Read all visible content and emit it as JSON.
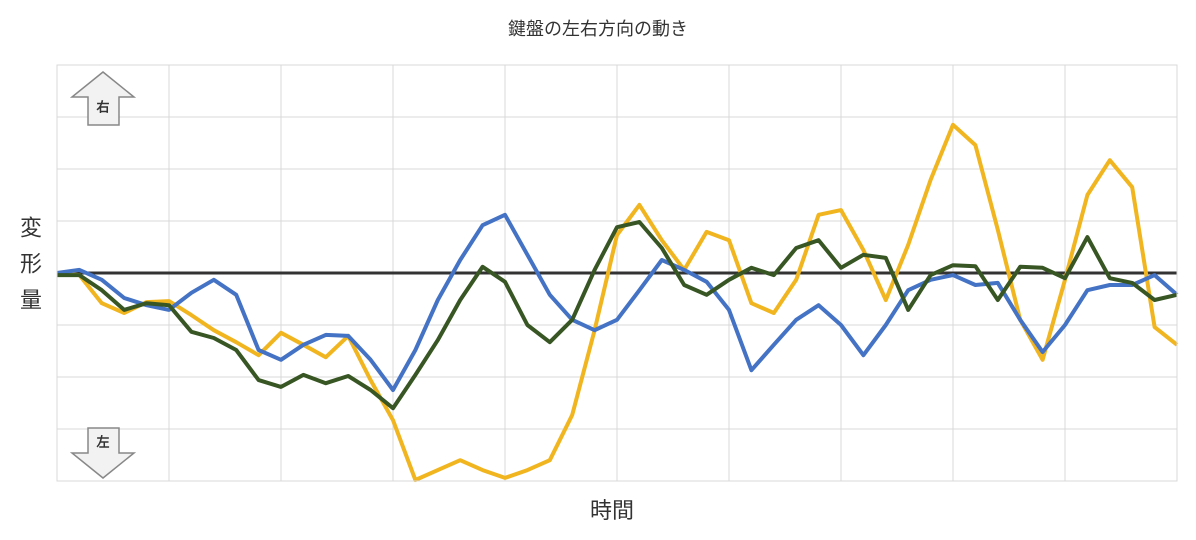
{
  "chart_data": {
    "type": "line",
    "title": "鍵盤の左右方向の動き",
    "x_label": "時間",
    "y_label": "変形量",
    "annotations": [
      "右",
      "左"
    ],
    "x": [
      0,
      1,
      2,
      3,
      4,
      5,
      6,
      7,
      8,
      9,
      10,
      11,
      12,
      13,
      14,
      15,
      16,
      17,
      18,
      19,
      20,
      21,
      22,
      23,
      24,
      25,
      26,
      27,
      28,
      29,
      30,
      31,
      32,
      33,
      34,
      35,
      36,
      37,
      38,
      39,
      40,
      41,
      42,
      43,
      44,
      45,
      46,
      47,
      48,
      49,
      50
    ],
    "xlim": [
      0,
      50
    ],
    "xticks": [
      0,
      5,
      10,
      15,
      20,
      25,
      30,
      35,
      40,
      45,
      50
    ],
    "ylim": [
      -4,
      4
    ],
    "yticks": [
      -4,
      -3,
      -2,
      -1,
      0,
      1,
      2,
      3,
      4
    ],
    "grid": true,
    "series": [
      {
        "color": "#f0b51f",
        "values": [
          0,
          -0.04,
          -0.58,
          -0.77,
          -0.56,
          -0.54,
          -0.81,
          -1.1,
          -1.33,
          -1.58,
          -1.15,
          -1.38,
          -1.62,
          -1.21,
          -2.06,
          -2.83,
          -3.98,
          -3.79,
          -3.6,
          -3.79,
          -3.94,
          -3.79,
          -3.6,
          -2.73,
          -1.1,
          0.73,
          1.31,
          0.63,
          0.06,
          0.79,
          0.63,
          -0.58,
          -0.77,
          -0.13,
          1.12,
          1.21,
          0.44,
          -0.52,
          0.54,
          1.79,
          2.85,
          2.46,
          0.83,
          -0.9,
          -1.67,
          -0.13,
          1.5,
          2.17,
          1.65,
          -1.04,
          -1.38
        ]
      },
      {
        "color": "#4472c4",
        "values": [
          0,
          0.06,
          -0.13,
          -0.48,
          -0.62,
          -0.71,
          -0.38,
          -0.13,
          -0.42,
          -1.48,
          -1.67,
          -1.38,
          -1.19,
          -1.21,
          -1.67,
          -2.25,
          -1.48,
          -0.52,
          0.25,
          0.92,
          1.12,
          0.35,
          -0.42,
          -0.9,
          -1.1,
          -0.9,
          -0.33,
          0.25,
          0.06,
          -0.17,
          -0.71,
          -1.87,
          -1.38,
          -0.9,
          -0.62,
          -1,
          -1.58,
          -1,
          -0.33,
          -0.13,
          -0.04,
          -0.23,
          -0.19,
          -0.9,
          -1.52,
          -1,
          -0.33,
          -0.23,
          -0.23,
          -0.04,
          -0.42
        ]
      },
      {
        "color": "#375623",
        "values": [
          -0.04,
          -0.04,
          -0.33,
          -0.71,
          -0.58,
          -0.62,
          -1.13,
          -1.25,
          -1.48,
          -2.06,
          -2.19,
          -1.96,
          -2.12,
          -1.98,
          -2.25,
          -2.6,
          -1.96,
          -1.29,
          -0.52,
          0.12,
          -0.17,
          -1,
          -1.33,
          -0.9,
          0.06,
          0.88,
          0.98,
          0.48,
          -0.23,
          -0.42,
          -0.13,
          0.1,
          -0.04,
          0.48,
          0.63,
          0.1,
          0.35,
          0.29,
          -0.71,
          -0.04,
          0.15,
          0.13,
          -0.52,
          0.12,
          0.1,
          -0.1,
          0.69,
          -0.1,
          -0.19,
          -0.52,
          -0.42
        ]
      }
    ]
  }
}
